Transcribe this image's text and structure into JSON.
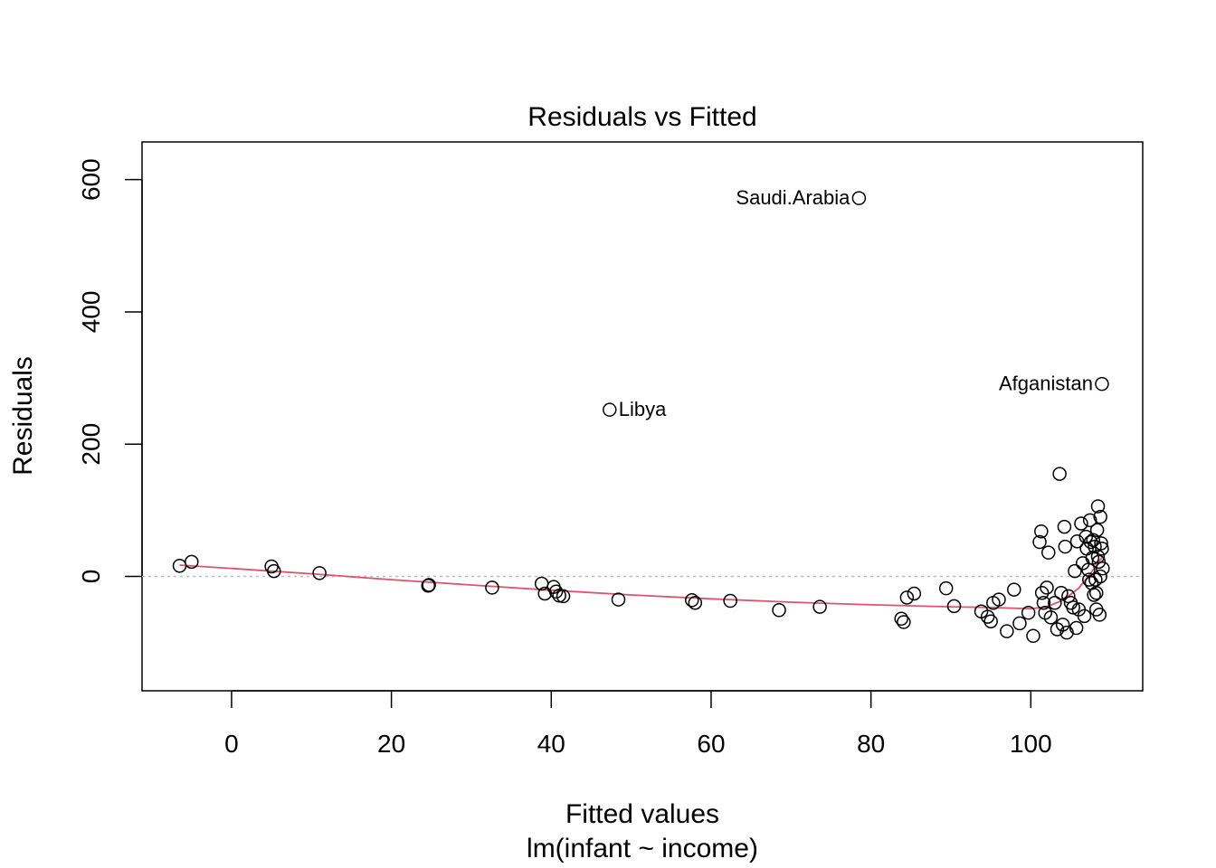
{
  "chart_data": {
    "type": "scatter",
    "title": "Residuals vs Fitted",
    "xlabel": "Fitted values",
    "subtitle": "lm(infant ~ income)",
    "ylabel": "Residuals",
    "xlim": [
      -11.2,
      114
    ],
    "ylim": [
      -173,
      657
    ],
    "x_ticks": [
      0,
      20,
      40,
      60,
      80,
      100
    ],
    "y_ticks": [
      0,
      200,
      400,
      600
    ],
    "zero_line": 0,
    "colors": {
      "points": "#000000",
      "smooth": "#DF536B",
      "zero_line": "#BEBEBE"
    },
    "points": [
      {
        "x": 78.5,
        "y": 572,
        "label": "Saudi.Arabia"
      },
      {
        "x": 108.9,
        "y": 291,
        "label": "Afganistan"
      },
      {
        "x": 47.3,
        "y": 252,
        "label": "Libya"
      },
      {
        "x": -6.5,
        "y": 16
      },
      {
        "x": -5.0,
        "y": 22
      },
      {
        "x": 5.0,
        "y": 15
      },
      {
        "x": 5.3,
        "y": 8
      },
      {
        "x": 11.0,
        "y": 5
      },
      {
        "x": 24.6,
        "y": -14
      },
      {
        "x": 24.7,
        "y": -13
      },
      {
        "x": 32.6,
        "y": -17
      },
      {
        "x": 38.8,
        "y": -11
      },
      {
        "x": 39.2,
        "y": -26
      },
      {
        "x": 40.3,
        "y": -16
      },
      {
        "x": 40.6,
        "y": -23
      },
      {
        "x": 41.0,
        "y": -29
      },
      {
        "x": 41.5,
        "y": -30
      },
      {
        "x": 48.4,
        "y": -35
      },
      {
        "x": 57.6,
        "y": -36
      },
      {
        "x": 58.0,
        "y": -40
      },
      {
        "x": 62.4,
        "y": -37
      },
      {
        "x": 68.5,
        "y": -51
      },
      {
        "x": 73.6,
        "y": -46
      },
      {
        "x": 83.8,
        "y": -64
      },
      {
        "x": 84.1,
        "y": -69
      },
      {
        "x": 84.5,
        "y": -32
      },
      {
        "x": 85.4,
        "y": -26
      },
      {
        "x": 89.4,
        "y": -18
      },
      {
        "x": 90.4,
        "y": -45
      },
      {
        "x": 93.8,
        "y": -53
      },
      {
        "x": 94.6,
        "y": -61
      },
      {
        "x": 95.0,
        "y": -68
      },
      {
        "x": 95.3,
        "y": -40
      },
      {
        "x": 96.0,
        "y": -35
      },
      {
        "x": 97.0,
        "y": -83
      },
      {
        "x": 97.9,
        "y": -20
      },
      {
        "x": 98.6,
        "y": -71
      },
      {
        "x": 99.7,
        "y": -55
      },
      {
        "x": 100.3,
        "y": -90
      },
      {
        "x": 101.1,
        "y": 52
      },
      {
        "x": 101.3,
        "y": 68
      },
      {
        "x": 101.4,
        "y": -25
      },
      {
        "x": 101.6,
        "y": -40
      },
      {
        "x": 101.8,
        "y": -55
      },
      {
        "x": 102.0,
        "y": -17
      },
      {
        "x": 102.2,
        "y": 36
      },
      {
        "x": 102.5,
        "y": -62
      },
      {
        "x": 103.0,
        "y": -40
      },
      {
        "x": 103.3,
        "y": -80
      },
      {
        "x": 103.6,
        "y": 155
      },
      {
        "x": 103.8,
        "y": -25
      },
      {
        "x": 104.0,
        "y": -73
      },
      {
        "x": 104.2,
        "y": 75
      },
      {
        "x": 104.3,
        "y": 45
      },
      {
        "x": 104.5,
        "y": -85
      },
      {
        "x": 104.7,
        "y": -30
      },
      {
        "x": 105.0,
        "y": -40
      },
      {
        "x": 105.3,
        "y": -47
      },
      {
        "x": 105.5,
        "y": 8
      },
      {
        "x": 105.7,
        "y": -78
      },
      {
        "x": 105.8,
        "y": 53
      },
      {
        "x": 106.0,
        "y": -50
      },
      {
        "x": 106.3,
        "y": 80
      },
      {
        "x": 106.5,
        "y": 20
      },
      {
        "x": 106.7,
        "y": -60
      },
      {
        "x": 106.9,
        "y": 60
      },
      {
        "x": 107.0,
        "y": 42
      },
      {
        "x": 107.2,
        "y": 10
      },
      {
        "x": 107.3,
        "y": -5
      },
      {
        "x": 107.4,
        "y": 85
      },
      {
        "x": 107.5,
        "y": 52
      },
      {
        "x": 107.6,
        "y": -10
      },
      {
        "x": 107.7,
        "y": 28
      },
      {
        "x": 107.8,
        "y": 55
      },
      {
        "x": 107.9,
        "y": -28
      },
      {
        "x": 108.0,
        "y": 45
      },
      {
        "x": 108.1,
        "y": -5
      },
      {
        "x": 108.2,
        "y": -50
      },
      {
        "x": 108.3,
        "y": 70
      },
      {
        "x": 108.4,
        "y": 106
      },
      {
        "x": 108.5,
        "y": 22
      },
      {
        "x": 108.6,
        "y": -58
      },
      {
        "x": 108.7,
        "y": 90
      },
      {
        "x": 108.8,
        "y": 50
      },
      {
        "x": 108.9,
        "y": 42
      },
      {
        "x": 109.0,
        "y": 12
      },
      {
        "x": 108.2,
        "y": -25
      },
      {
        "x": 108.7,
        "y": 0
      },
      {
        "x": 108.4,
        "y": 30
      }
    ],
    "smooth": [
      {
        "x": -6.5,
        "y": 17
      },
      {
        "x": 0,
        "y": 12
      },
      {
        "x": 10,
        "y": 4
      },
      {
        "x": 20,
        "y": -5
      },
      {
        "x": 30,
        "y": -13
      },
      {
        "x": 40,
        "y": -21
      },
      {
        "x": 50,
        "y": -28
      },
      {
        "x": 60,
        "y": -34
      },
      {
        "x": 70,
        "y": -39
      },
      {
        "x": 80,
        "y": -43
      },
      {
        "x": 90,
        "y": -46
      },
      {
        "x": 95,
        "y": -47
      },
      {
        "x": 100,
        "y": -49
      },
      {
        "x": 102,
        "y": -46
      },
      {
        "x": 104,
        "y": -36
      },
      {
        "x": 106,
        "y": -18
      },
      {
        "x": 107.5,
        "y": 5
      },
      {
        "x": 108.5,
        "y": 22
      },
      {
        "x": 109.0,
        "y": 30
      }
    ]
  }
}
